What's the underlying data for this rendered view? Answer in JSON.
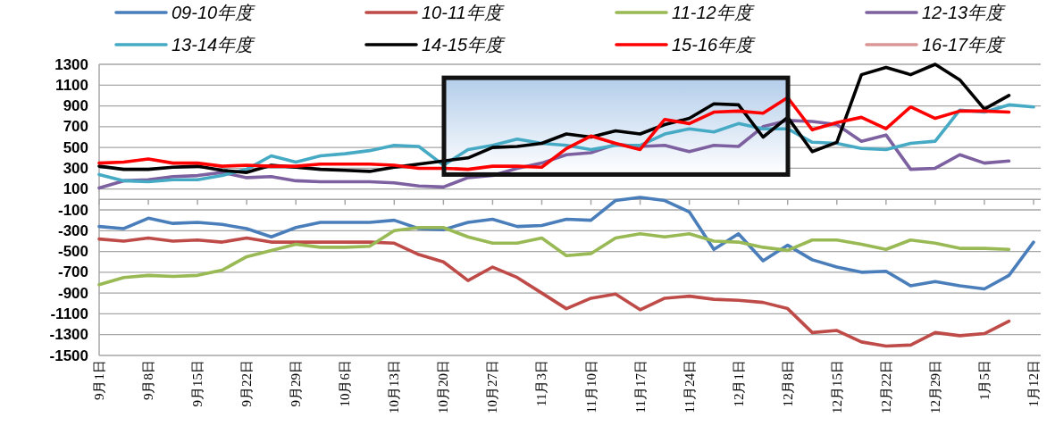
{
  "chart_data": {
    "type": "line",
    "categories": [
      "9月1日",
      null,
      "9月8日",
      null,
      "9月15日",
      null,
      "9月22日",
      null,
      "9月29日",
      null,
      "10月6日",
      null,
      "10月13日",
      null,
      "10月20日",
      null,
      "10月27日",
      null,
      "11月3日",
      null,
      "11月10日",
      null,
      "11月17日",
      null,
      "11月24日",
      null,
      "12月1日",
      null,
      "12月8日",
      null,
      "12月15日",
      null,
      "12月22日",
      null,
      "12月29日",
      null,
      "1月5日",
      null,
      "1月12日"
    ],
    "ylim": [
      -1500,
      1300
    ],
    "yticks": [
      -1500,
      -1300,
      -1100,
      -900,
      -700,
      -500,
      -300,
      -100,
      100,
      300,
      500,
      700,
      900,
      1100,
      1300
    ],
    "grid": "y",
    "legend": "top",
    "series": [
      {
        "name": "09-10年度",
        "color": "#4a7ebb",
        "values": [
          -260,
          -280,
          -180,
          -230,
          -220,
          -240,
          -280,
          -360,
          -270,
          -220,
          -220,
          -220,
          -200,
          -280,
          -290,
          -220,
          -190,
          -260,
          -250,
          -190,
          -200,
          -10,
          20,
          -10,
          -120,
          -480,
          -330,
          -590,
          -440,
          -580,
          -650,
          -700,
          -690,
          -830,
          -790,
          -830,
          -860,
          -730,
          -410
        ]
      },
      {
        "name": "10-11年度",
        "color": "#be4b48",
        "values": [
          -380,
          -400,
          -370,
          -400,
          -390,
          -410,
          -370,
          -410,
          -410,
          -410,
          -410,
          -410,
          -420,
          -530,
          -600,
          -780,
          -650,
          -750,
          -900,
          -1050,
          -950,
          -910,
          -1060,
          -950,
          -930,
          -960,
          -970,
          -990,
          -1050,
          -1280,
          -1260,
          -1370,
          -1410,
          -1400,
          -1280,
          -1310,
          -1290,
          -1170,
          null
        ]
      },
      {
        "name": "11-12年度",
        "color": "#98b954",
        "values": [
          -820,
          -750,
          -730,
          -740,
          -730,
          -680,
          -550,
          -490,
          -430,
          -460,
          -460,
          -450,
          -300,
          -270,
          -270,
          -360,
          -420,
          -420,
          -370,
          -540,
          -520,
          -370,
          -330,
          -360,
          -330,
          -400,
          -410,
          -460,
          -490,
          -390,
          -390,
          -430,
          -480,
          -390,
          -420,
          -470,
          -470,
          -480,
          null
        ]
      },
      {
        "name": "12-13年度",
        "color": "#7d60a0",
        "values": [
          110,
          180,
          190,
          220,
          230,
          260,
          210,
          220,
          180,
          170,
          170,
          170,
          160,
          130,
          120,
          210,
          230,
          300,
          350,
          430,
          450,
          530,
          510,
          520,
          460,
          520,
          510,
          700,
          760,
          750,
          720,
          560,
          620,
          290,
          300,
          430,
          350,
          370,
          null
        ]
      },
      {
        "name": "13-14年度",
        "color": "#46aac5",
        "values": [
          240,
          180,
          170,
          190,
          190,
          230,
          290,
          420,
          360,
          420,
          440,
          470,
          520,
          510,
          330,
          480,
          520,
          580,
          540,
          520,
          480,
          520,
          520,
          630,
          680,
          650,
          730,
          680,
          680,
          550,
          540,
          490,
          480,
          540,
          560,
          860,
          840,
          910,
          890
        ]
      },
      {
        "name": "14-15年度",
        "color": "#000000",
        "values": [
          320,
          290,
          290,
          310,
          320,
          280,
          260,
          330,
          310,
          290,
          280,
          270,
          310,
          340,
          370,
          400,
          500,
          510,
          540,
          630,
          600,
          660,
          630,
          720,
          780,
          920,
          910,
          600,
          790,
          460,
          550,
          1200,
          1270,
          1200,
          1300,
          1150,
          870,
          1000,
          null
        ]
      },
      {
        "name": "15-16年度",
        "color": "#ff0000",
        "values": [
          350,
          360,
          390,
          350,
          350,
          320,
          330,
          320,
          320,
          340,
          340,
          340,
          330,
          300,
          300,
          290,
          320,
          320,
          310,
          490,
          610,
          540,
          480,
          770,
          730,
          840,
          850,
          830,
          980,
          670,
          740,
          790,
          680,
          890,
          780,
          850,
          850,
          840,
          null
        ]
      },
      {
        "name": "16-17年度",
        "color": "#d99694",
        "values": [
          null,
          null,
          null,
          null,
          null,
          null,
          null,
          null,
          null,
          null,
          null,
          null,
          null,
          null,
          null,
          null,
          null,
          null,
          null,
          null,
          null,
          null,
          null,
          null,
          null,
          null,
          null,
          null,
          null,
          null,
          null,
          null,
          null,
          null,
          null,
          null,
          null,
          null,
          null
        ]
      }
    ]
  }
}
